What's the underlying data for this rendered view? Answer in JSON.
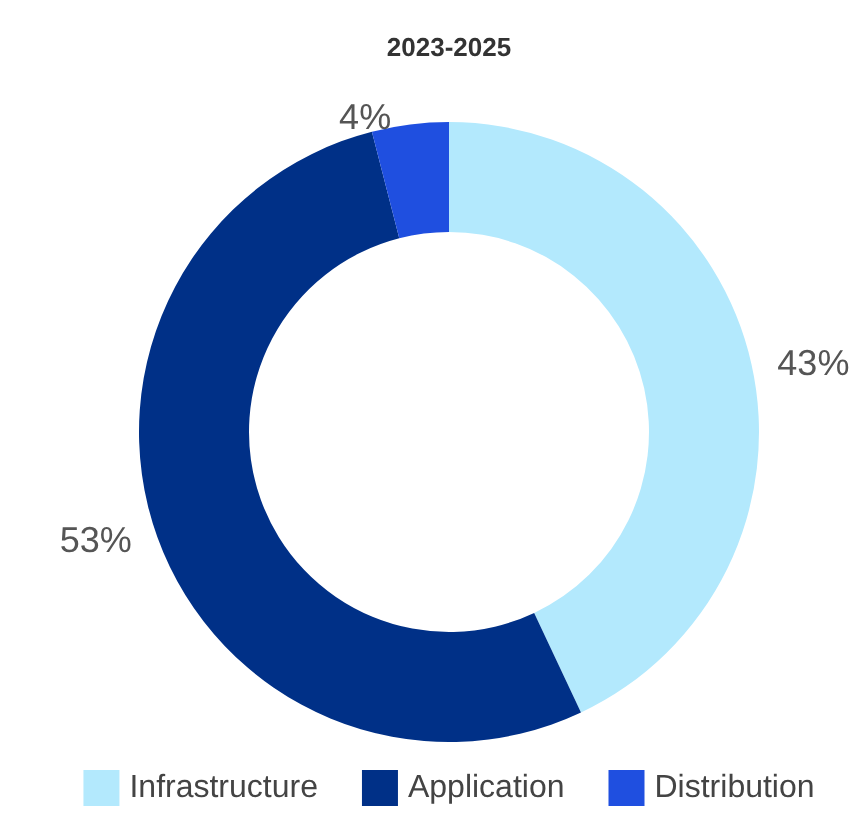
{
  "chart_data": {
    "type": "donut",
    "title": "2023-2025",
    "categories": [
      "Infrastructure",
      "Application",
      "Distribution"
    ],
    "values": [
      43,
      53,
      4
    ],
    "colors": [
      "#b3e9fd",
      "#003087",
      "#1f4fe0"
    ],
    "legend": "bottom",
    "value_labels": [
      "43%",
      "53%",
      "4%"
    ]
  }
}
